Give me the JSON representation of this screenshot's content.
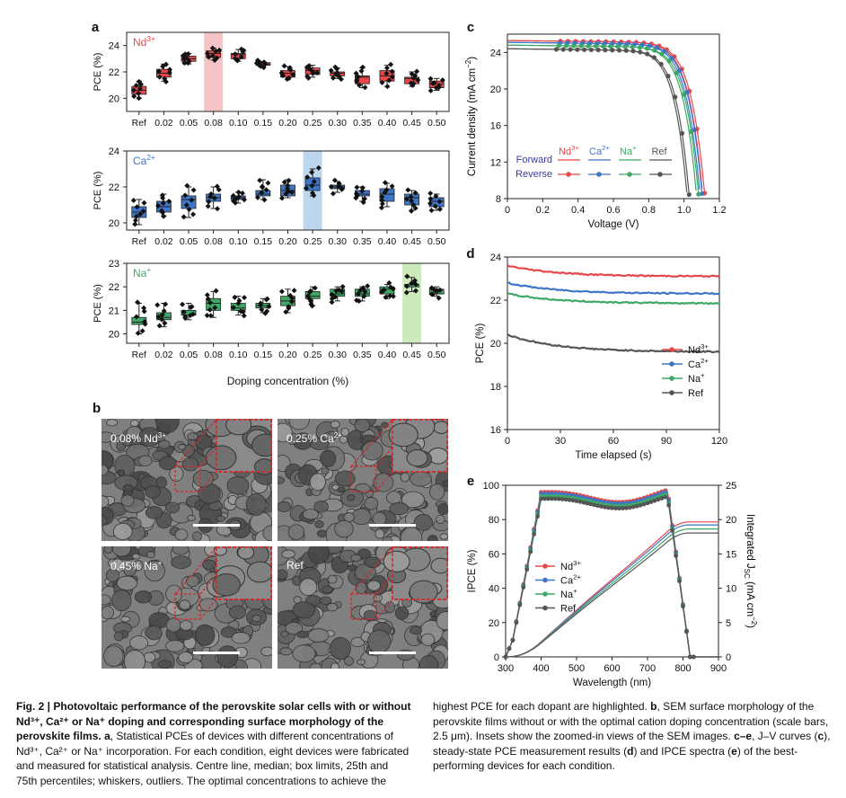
{
  "panels": {
    "a": {
      "label": "a",
      "xlabel": "Doping concentration (%)",
      "ylabel": "PCE (%)",
      "categories": [
        "Ref",
        "0.02",
        "0.05",
        "0.08",
        "0.10",
        "0.15",
        "0.20",
        "0.25",
        "0.30",
        "0.35",
        "0.40",
        "0.45",
        "0.50"
      ],
      "subplots": [
        {
          "name": "Nd3+",
          "ion": "Nd",
          "charge": "3+",
          "color": "#e8474a",
          "highlight": 3,
          "highlight_color": "#f6c4c6",
          "ylim": [
            19,
            25
          ],
          "yticks": [
            20,
            22,
            24
          ],
          "boxes": [
            [
              20.0,
              20.3,
              20.6,
              20.9,
              21.3
            ],
            [
              21.3,
              21.6,
              21.9,
              22.2,
              22.6
            ],
            [
              22.6,
              22.8,
              23.0,
              23.2,
              23.4
            ],
            [
              22.9,
              23.1,
              23.4,
              23.6,
              23.8
            ],
            [
              22.8,
              23.0,
              23.3,
              23.4,
              23.7
            ],
            [
              22.4,
              22.5,
              22.6,
              22.7,
              22.8
            ],
            [
              21.4,
              21.6,
              21.9,
              22.1,
              22.4
            ],
            [
              21.6,
              21.8,
              22.1,
              22.3,
              22.5
            ],
            [
              21.5,
              21.7,
              21.9,
              22.0,
              22.3
            ],
            [
              20.8,
              21.1,
              21.6,
              21.7,
              22.3
            ],
            [
              20.9,
              21.3,
              21.7,
              22.1,
              22.5
            ],
            [
              20.9,
              21.1,
              21.5,
              21.6,
              22.0
            ],
            [
              20.6,
              20.8,
              21.1,
              21.3,
              21.5
            ]
          ]
        },
        {
          "name": "Ca2+",
          "ion": "Ca",
          "charge": "2+",
          "color": "#3d76c8",
          "highlight": 7,
          "highlight_color": "#bcd6ee",
          "ylim": [
            19.6,
            24
          ],
          "yticks": [
            20,
            22,
            24
          ],
          "boxes": [
            [
              19.9,
              20.3,
              20.6,
              20.9,
              21.3
            ],
            [
              20.4,
              20.6,
              20.9,
              21.2,
              21.6
            ],
            [
              20.3,
              20.8,
              21.3,
              21.5,
              22.0
            ],
            [
              20.8,
              21.2,
              21.4,
              21.6,
              22.0
            ],
            [
              21.1,
              21.3,
              21.4,
              21.5,
              21.7
            ],
            [
              21.3,
              21.5,
              21.6,
              21.8,
              22.4
            ],
            [
              21.4,
              21.5,
              21.8,
              22.1,
              22.4
            ],
            [
              21.5,
              21.8,
              22.1,
              22.5,
              23.0
            ],
            [
              21.7,
              21.9,
              22.0,
              22.1,
              22.3
            ],
            [
              21.2,
              21.5,
              21.6,
              21.8,
              22.0
            ],
            [
              20.9,
              21.2,
              21.6,
              21.9,
              22.2
            ],
            [
              20.7,
              21.0,
              21.4,
              21.6,
              21.8
            ],
            [
              20.7,
              20.9,
              21.2,
              21.4,
              21.6
            ]
          ]
        },
        {
          "name": "Na+",
          "ion": "Na",
          "charge": "+",
          "color": "#3ea867",
          "highlight": 11,
          "highlight_color": "#cdeabc",
          "ylim": [
            19.6,
            23
          ],
          "yticks": [
            20,
            21,
            22,
            23
          ],
          "boxes": [
            [
              20.0,
              20.4,
              20.5,
              20.7,
              21.3
            ],
            [
              20.3,
              20.6,
              20.7,
              20.9,
              21.3
            ],
            [
              20.6,
              20.8,
              20.8,
              21.0,
              21.3
            ],
            [
              20.7,
              21.0,
              21.3,
              21.5,
              21.8
            ],
            [
              20.8,
              21.0,
              21.1,
              21.3,
              21.6
            ],
            [
              20.9,
              21.1,
              21.2,
              21.3,
              21.5
            ],
            [
              20.9,
              21.2,
              21.4,
              21.6,
              21.9
            ],
            [
              21.2,
              21.5,
              21.6,
              21.8,
              22.0
            ],
            [
              21.4,
              21.6,
              21.7,
              21.9,
              22.0
            ],
            [
              21.4,
              21.6,
              21.7,
              21.9,
              22.0
            ],
            [
              21.5,
              21.7,
              21.9,
              22.0,
              22.1
            ],
            [
              21.8,
              22.0,
              22.1,
              22.1,
              22.4
            ],
            [
              21.6,
              21.7,
              21.7,
              21.9,
              22.0
            ]
          ]
        }
      ]
    },
    "b": {
      "label": "b",
      "images": [
        {
          "label": "0.08% Nd",
          "sup": "3+"
        },
        {
          "label": "0.25% Ca",
          "sup": "2+"
        },
        {
          "label": "0.45% Na",
          "sup": "+"
        },
        {
          "label": "Ref",
          "sup": ""
        }
      ]
    },
    "c": {
      "label": "c",
      "xlabel": "Voltage (V)",
      "ylabel_main": "Current density (mA cm",
      "ylabel_sup": "−2",
      "ylabel_end": ")",
      "xlim": [
        0,
        1.2
      ],
      "ylim": [
        8,
        26
      ],
      "xticks": [
        "0",
        "0.2",
        "0.4",
        "0.6",
        "0.8",
        "1.0",
        "1.2"
      ],
      "yticks": [
        "8",
        "12",
        "16",
        "20",
        "24"
      ],
      "legend_forward": "Forward",
      "legend_reverse": "Reverse",
      "series": [
        {
          "ion": "Nd",
          "charge": "3+",
          "color": "#e8474a",
          "jsc": 25.3,
          "voc": 1.145
        },
        {
          "ion": "Ca",
          "charge": "2+",
          "color": "#3d76c8",
          "jsc": 25.1,
          "voc": 1.13
        },
        {
          "ion": "Na",
          "charge": "+",
          "color": "#3ea867",
          "jsc": 24.8,
          "voc": 1.11
        },
        {
          "ion": "Ref",
          "charge": "",
          "color": "#555555",
          "jsc": 24.4,
          "voc": 1.055
        }
      ]
    },
    "d": {
      "label": "d",
      "xlabel": "Time elapsed (s)",
      "ylabel": "PCE (%)",
      "xlim": [
        0,
        120
      ],
      "ylim": [
        16,
        24
      ],
      "xticks": [
        "0",
        "30",
        "60",
        "90",
        "120"
      ],
      "yticks": [
        "16",
        "18",
        "20",
        "22",
        "24"
      ],
      "series": [
        {
          "ion": "Nd",
          "charge": "3+",
          "color": "#e8474a",
          "start": 23.6,
          "end": 23.1
        },
        {
          "ion": "Ca",
          "charge": "2+",
          "color": "#3d76c8",
          "start": 22.8,
          "end": 22.3
        },
        {
          "ion": "Na",
          "charge": "+",
          "color": "#3ea867",
          "start": 22.3,
          "end": 21.85
        },
        {
          "ion": "Ref",
          "charge": "",
          "color": "#555555",
          "start": 20.4,
          "end": 19.6
        }
      ]
    },
    "e": {
      "label": "e",
      "xlabel": "Wavelength (nm)",
      "ylabel_left": "IPCE (%)",
      "ylabel_right_pre": "Integrated J",
      "ylabel_right_sub": "SC",
      "ylabel_right_post": " (mA cm",
      "ylabel_right_sup": "−2",
      "ylabel_right_end": ")",
      "xlim": [
        300,
        900
      ],
      "ylim_left": [
        0,
        100
      ],
      "ylim_right": [
        0,
        25
      ],
      "xticks": [
        "300",
        "400",
        "500",
        "600",
        "700",
        "800",
        "900"
      ],
      "yticks_left": [
        "0",
        "20",
        "40",
        "60",
        "80",
        "100"
      ],
      "yticks_right": [
        "0",
        "5",
        "10",
        "15",
        "20",
        "25"
      ],
      "series": [
        {
          "ion": "Nd",
          "charge": "3+",
          "color": "#e8474a",
          "jsc": 25.1
        },
        {
          "ion": "Ca",
          "charge": "2+",
          "color": "#3d76c8",
          "jsc": 24.8
        },
        {
          "ion": "Na",
          "charge": "+",
          "color": "#3ea867",
          "jsc": 24.4
        },
        {
          "ion": "Ref",
          "charge": "",
          "color": "#555555",
          "jsc": 24.0
        }
      ]
    }
  },
  "caption": {
    "fig": "Fig. 2 | Photovoltaic performance of the perovskite solar cells with or without Nd³⁺, Ca²⁺ or Na⁺ doping and corresponding surface morphology of the perovskite films.",
    "a_label": "a",
    "a_text": ", Statistical PCEs of devices with different concentrations of Nd³⁺, Ca²⁺ or Na⁺ incorporation. For each condition, eight devices were fabricated and measured for statistical analysis. Centre line, median; box limits, 25th and 75th percentiles; whiskers, outliers. The optimal concentrations to achieve the",
    "r1": "highest PCE for each dopant are highlighted. ",
    "b_label": "b",
    "r2": ", SEM surface morphology of the perovskite films without or with the optimal cation doping concentration (scale bars, 2.5 μm). Insets show the zoomed-in views of the SEM images. ",
    "ce_label": "c–e",
    "r3": ", J–V curves (",
    "c_label": "c",
    "r4": "), steady-state PCE measurement results (",
    "d_label": "d",
    "r5": ") and IPCE spectra (",
    "e_label": "e",
    "r6": ") of the best-performing devices for each condition."
  }
}
